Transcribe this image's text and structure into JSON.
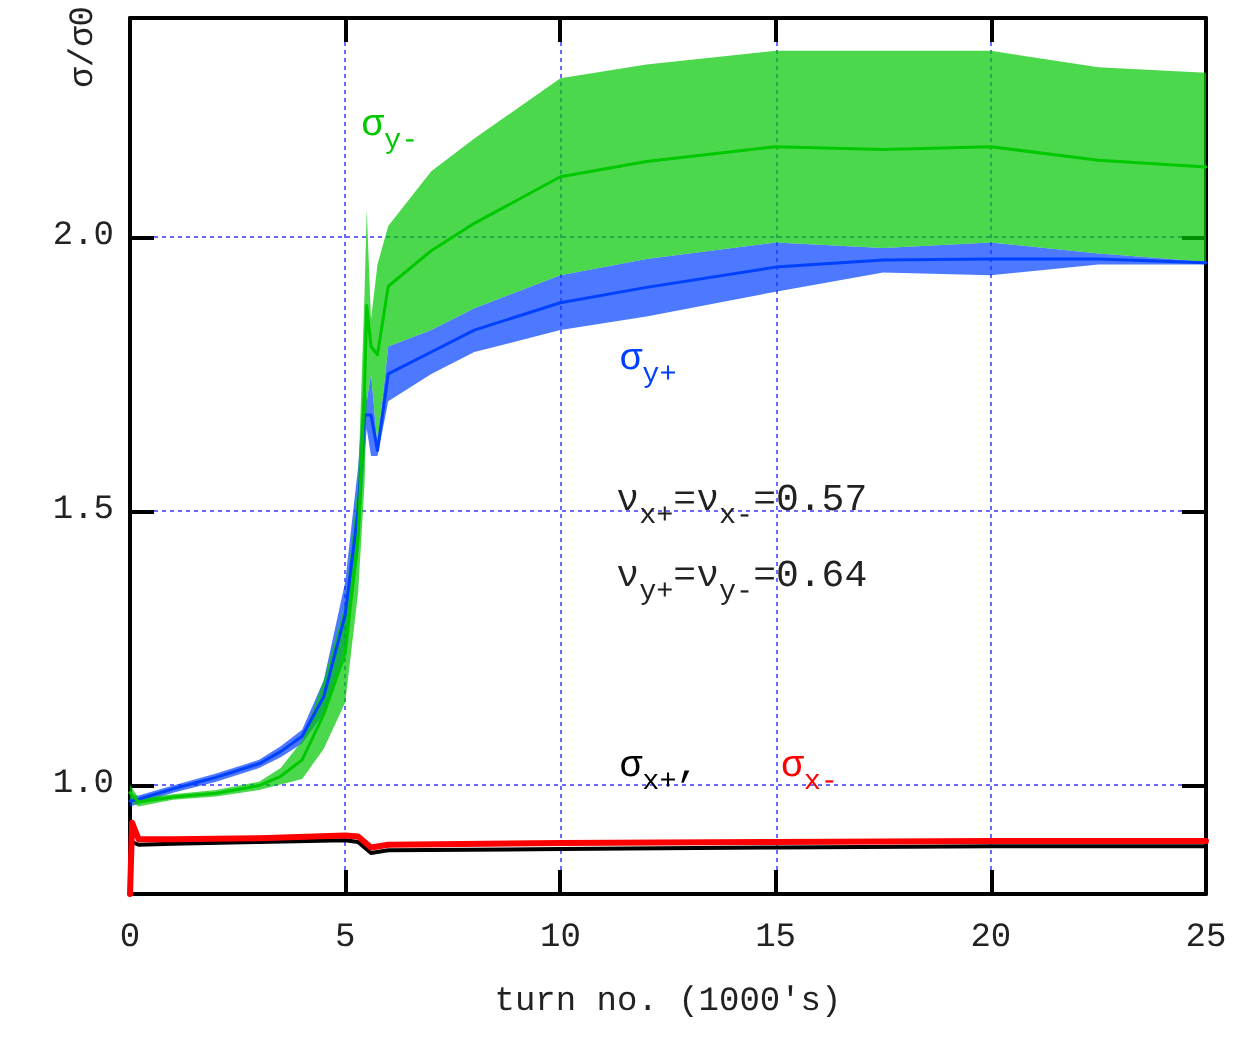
{
  "chart_data": {
    "type": "line",
    "xlabel": "turn no. (1000's)",
    "ylabel": "σ/σ0",
    "xlim": [
      0,
      25
    ],
    "xticks": [
      0,
      5,
      10,
      15,
      20,
      25
    ],
    "ylim": [
      0.8,
      2.4
    ],
    "yticks": [
      {
        "value": 1,
        "label": "1.0"
      },
      1.5,
      {
        "value": 2,
        "label": "2.0"
      }
    ],
    "grid": true,
    "annotations": [
      "ν$_{x+}$=ν$_{x-}$=0.57",
      "ν$_{y+}$=ν$_{y-}$=0.64"
    ],
    "series": [
      {
        "name": "σ$_{y+}$",
        "color": "#0040ff",
        "x": [
          0,
          0.2,
          1,
          2,
          3,
          3.5,
          4,
          4.5,
          5,
          5.3,
          5.45,
          5.5,
          5.6,
          5.75,
          6,
          7,
          8,
          10,
          12,
          15,
          17.5,
          20,
          22.5,
          25
        ],
        "values": [
          0.97,
          0.973,
          0.992,
          1.013,
          1.038,
          1.06,
          1.088,
          1.16,
          1.31,
          1.5,
          1.675,
          1.675,
          1.675,
          1.61,
          1.75,
          1.79,
          1.83,
          1.88,
          1.908,
          1.945,
          1.958,
          1.96,
          1.96,
          1.953
        ],
        "lower": [
          0.96,
          0.965,
          0.985,
          1.005,
          1.03,
          1.05,
          1.075,
          1.13,
          1.25,
          1.42,
          1.6,
          1.65,
          1.6,
          1.6,
          1.7,
          1.75,
          1.79,
          1.83,
          1.855,
          1.9,
          1.935,
          1.93,
          1.95,
          1.95
        ],
        "upper": [
          0.98,
          0.98,
          0.998,
          1.02,
          1.045,
          1.07,
          1.1,
          1.19,
          1.37,
          1.58,
          1.75,
          1.7,
          1.75,
          1.62,
          1.8,
          1.83,
          1.87,
          1.93,
          1.96,
          1.99,
          1.98,
          1.99,
          1.97,
          1.955
        ]
      },
      {
        "name": "σ$_{y-}$",
        "color": "#00c800",
        "x": [
          0,
          0.2,
          1,
          2,
          3,
          3.5,
          4,
          4.5,
          5,
          5.3,
          5.45,
          5.5,
          5.6,
          5.75,
          6,
          7,
          8,
          10,
          12,
          15,
          17.5,
          20,
          22.5,
          25
        ],
        "values": [
          0.985,
          0.968,
          0.977,
          0.984,
          0.998,
          1.015,
          1.045,
          1.128,
          1.24,
          1.45,
          1.725,
          1.875,
          1.8,
          1.785,
          1.91,
          1.975,
          2.025,
          2.11,
          2.138,
          2.165,
          2.16,
          2.165,
          2.14,
          2.128
        ],
        "lower": [
          0.97,
          0.96,
          0.972,
          0.978,
          0.99,
          1.0,
          1.01,
          1.065,
          1.15,
          1.35,
          1.55,
          1.7,
          1.75,
          1.62,
          1.8,
          1.83,
          1.87,
          1.93,
          1.96,
          1.99,
          1.98,
          1.99,
          1.97,
          1.955
        ],
        "upper": [
          1.0,
          0.975,
          0.982,
          0.99,
          1.005,
          1.03,
          1.08,
          1.19,
          1.33,
          1.55,
          1.9,
          2.05,
          1.85,
          1.95,
          2.02,
          2.12,
          2.18,
          2.29,
          2.315,
          2.34,
          2.34,
          2.34,
          2.31,
          2.3
        ]
      },
      {
        "name": "σ$_{x+}$,",
        "color": "#000000",
        "x": [
          0,
          0.05,
          0.2,
          1,
          3,
          5,
          5.3,
          5.6,
          6,
          10,
          15,
          20,
          25
        ],
        "values": [
          0.9,
          0.895,
          0.89,
          0.892,
          0.895,
          0.898,
          0.895,
          0.875,
          0.88,
          0.882,
          0.885,
          0.887,
          0.887
        ]
      },
      {
        "name": "σ$_{x-}$",
        "color": "#ff0000",
        "x": [
          0,
          0.05,
          0.2,
          1,
          3,
          5,
          5.3,
          5.6,
          6,
          10,
          15,
          20,
          25
        ],
        "values": [
          0.8,
          0.93,
          0.9,
          0.9,
          0.902,
          0.907,
          0.905,
          0.885,
          0.89,
          0.893,
          0.895,
          0.897,
          0.897
        ]
      }
    ]
  }
}
